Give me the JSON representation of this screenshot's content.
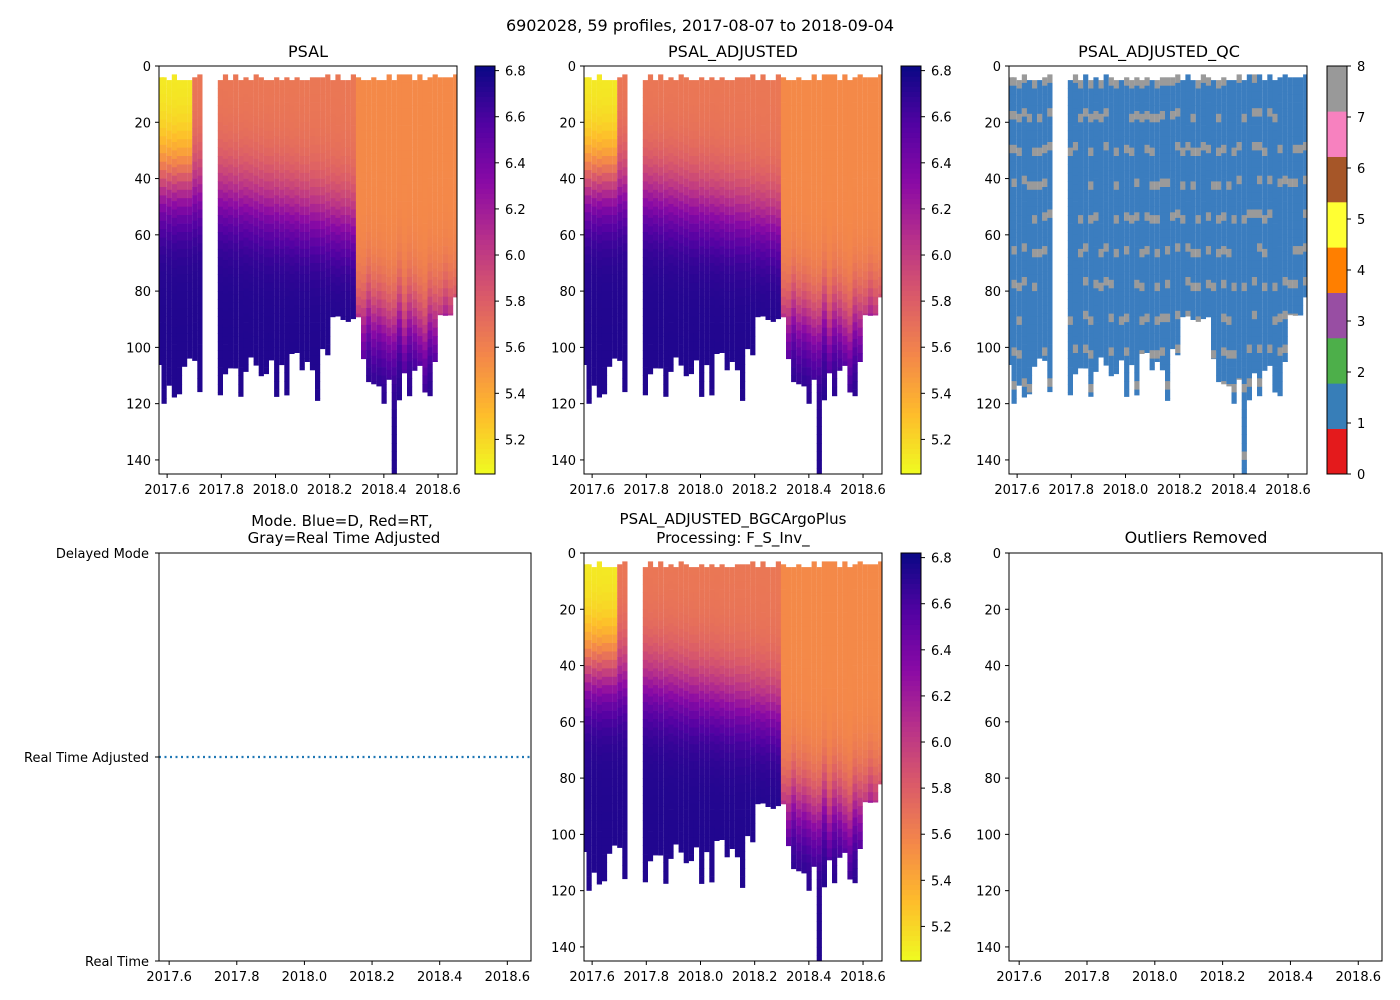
{
  "figure_title": "6902028, 59 profiles, 2017-08-07 to 2018-09-04",
  "colors": {
    "axis": "#000000",
    "mode_line": "#1f77b4",
    "qc_fill": "#3b7dbf",
    "qc_gap": "#9a9a9a"
  },
  "chart_data": [
    {
      "id": "psal",
      "type": "heatmap",
      "title": "PSAL",
      "x": {
        "lim": [
          2017.57,
          2018.67
        ],
        "ticks": [
          "2017.6",
          "2017.8",
          "2018.0",
          "2018.2",
          "2018.4",
          "2018.6"
        ]
      },
      "y": {
        "lim": [
          145,
          0
        ],
        "inverted": true,
        "ticks": [
          "0",
          "20",
          "40",
          "60",
          "80",
          "100",
          "120",
          "140"
        ]
      },
      "colorbar": {
        "cmap": "plasma_r",
        "range": [
          5.05,
          6.82
        ],
        "ticks": [
          "5.2",
          "5.4",
          "5.6",
          "5.8",
          "6.0",
          "6.2",
          "6.4",
          "6.6",
          "6.8"
        ]
      },
      "profiles": 59
    },
    {
      "id": "psal_adjusted",
      "type": "heatmap",
      "title": "PSAL_ADJUSTED",
      "x": {
        "lim": [
          2017.57,
          2018.67
        ],
        "ticks": [
          "2017.6",
          "2017.8",
          "2018.0",
          "2018.2",
          "2018.4",
          "2018.6"
        ]
      },
      "y": {
        "lim": [
          145,
          0
        ],
        "inverted": true,
        "ticks": [
          "0",
          "20",
          "40",
          "60",
          "80",
          "100",
          "120",
          "140"
        ]
      },
      "colorbar": {
        "cmap": "plasma_r",
        "range": [
          5.05,
          6.82
        ],
        "ticks": [
          "5.2",
          "5.4",
          "5.6",
          "5.8",
          "6.0",
          "6.2",
          "6.4",
          "6.6",
          "6.8"
        ]
      }
    },
    {
      "id": "psal_adjusted_qc",
      "type": "heatmap",
      "title": "PSAL_ADJUSTED_QC",
      "x": {
        "lim": [
          2017.57,
          2018.67
        ],
        "ticks": [
          "2017.6",
          "2017.8",
          "2018.0",
          "2018.2",
          "2018.4",
          "2018.6"
        ]
      },
      "y": {
        "lim": [
          145,
          0
        ],
        "inverted": true,
        "ticks": [
          "0",
          "20",
          "40",
          "60",
          "80",
          "100",
          "120",
          "140"
        ]
      },
      "colorbar": {
        "cmap": "qc",
        "range": [
          0,
          8
        ],
        "ticks": [
          "0",
          "1",
          "2",
          "3",
          "4",
          "5",
          "6",
          "7",
          "8"
        ],
        "colors": [
          "#e41a1c",
          "#377eb8",
          "#4daf4a",
          "#984ea3",
          "#ff7f00",
          "#ffff33",
          "#a65628",
          "#f781bf",
          "#999999"
        ]
      }
    },
    {
      "id": "mode",
      "type": "line",
      "title_line1": "Mode. Blue=D, Red=RT,",
      "title_line2": "Gray=Real Time Adjusted",
      "x": {
        "lim": [
          2017.57,
          2018.67
        ],
        "ticks": [
          "2017.6",
          "2017.8",
          "2018.0",
          "2018.2",
          "2018.4",
          "2018.6"
        ]
      },
      "y_categories": [
        "Delayed Mode",
        "Real Time Adjusted",
        "Real Time"
      ],
      "series": [
        {
          "name": "mode",
          "style": "dotted",
          "x": [
            2017.57,
            2018.67
          ],
          "y": [
            "Real Time Adjusted",
            "Real Time Adjusted"
          ]
        }
      ]
    },
    {
      "id": "bgc",
      "type": "heatmap",
      "title_line1": "PSAL_ADJUSTED_BGCArgoPlus",
      "title_line2": "Processing: F_S_Inv_",
      "x": {
        "lim": [
          2017.57,
          2018.67
        ],
        "ticks": [
          "2017.6",
          "2017.8",
          "2018.0",
          "2018.2",
          "2018.4",
          "2018.6"
        ]
      },
      "y": {
        "lim": [
          145,
          0
        ],
        "inverted": true,
        "ticks": [
          "0",
          "20",
          "40",
          "60",
          "80",
          "100",
          "120",
          "140"
        ]
      },
      "colorbar": {
        "cmap": "plasma_r",
        "range": [
          5.05,
          6.82
        ],
        "ticks": [
          "5.2",
          "5.4",
          "5.6",
          "5.8",
          "6.0",
          "6.2",
          "6.4",
          "6.6",
          "6.8"
        ]
      }
    },
    {
      "id": "outliers",
      "type": "scatter",
      "title": "Outliers Removed",
      "x": {
        "lim": [
          2017.57,
          2018.67
        ],
        "ticks": [
          "2017.6",
          "2017.8",
          "2018.0",
          "2018.2",
          "2018.4",
          "2018.6"
        ]
      },
      "y": {
        "lim": [
          145,
          0
        ],
        "inverted": true,
        "ticks": [
          "0",
          "20",
          "40",
          "60",
          "80",
          "100",
          "120",
          "140"
        ]
      },
      "points": []
    }
  ]
}
